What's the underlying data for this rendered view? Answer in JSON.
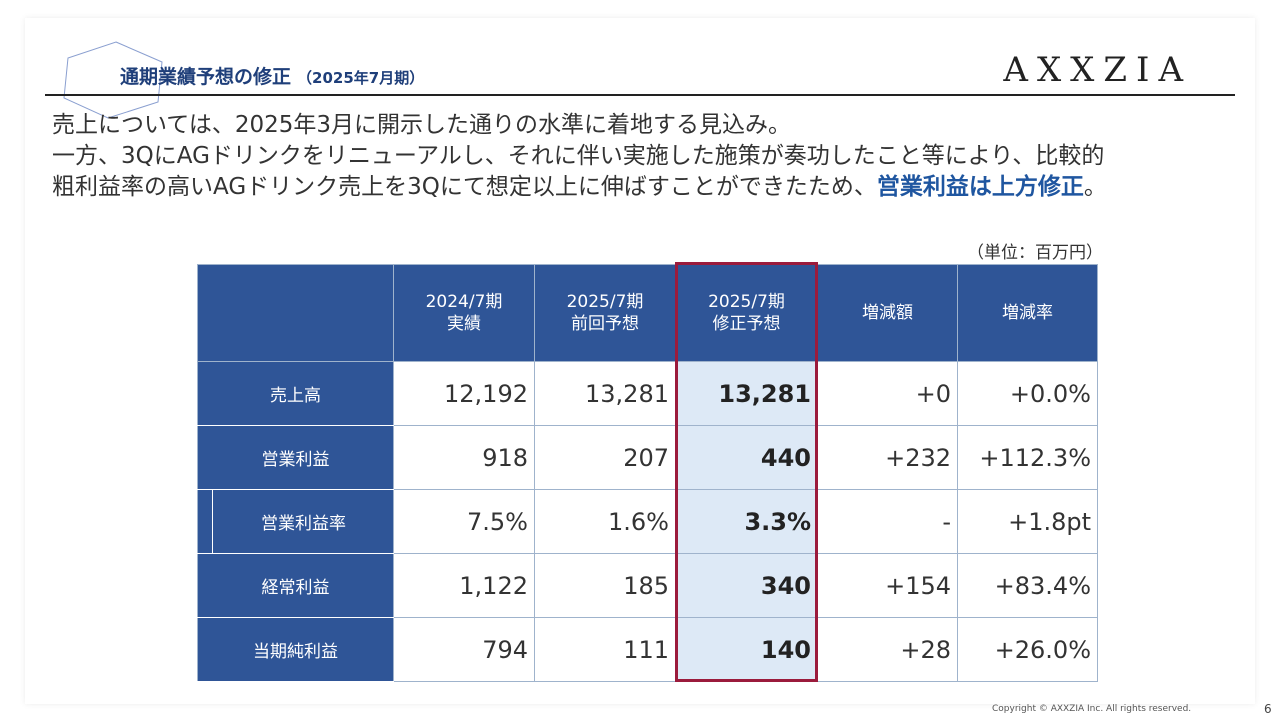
{
  "header": {
    "title": "通期業績予想の修正",
    "subtitle": "（2025年7月期）",
    "logo": "AXXZIA"
  },
  "intro": {
    "line1": "売上については、2025年3月に開示した通りの水準に着地する見込み。",
    "line2": "一方、3QにAGドリンクをリニューアルし、それに伴い実施した施策が奏功したこと等により、比較的",
    "line3_pre": "粗利益率の高いAGドリンク売上を3Qにて想定以上に伸ばすことができたため、",
    "line3_hl": "営業利益は上方修正",
    "line3_post": "。"
  },
  "unit_label": "（単位：百万円）",
  "table": {
    "columns": [
      {
        "line1": "",
        "line2": ""
      },
      {
        "line1": "2024/7期",
        "line2": "実績"
      },
      {
        "line1": "2025/7期",
        "line2": "前回予想"
      },
      {
        "line1": "2025/7期",
        "line2": "修正予想"
      },
      {
        "line1": "増減額",
        "line2": ""
      },
      {
        "line1": "増減率",
        "line2": ""
      }
    ],
    "rows": [
      {
        "label": "売上高",
        "actual": "12,192",
        "prev": "13,281",
        "revised": "13,281",
        "diff": "+0",
        "rate": "+0.0%"
      },
      {
        "label": "営業利益",
        "actual": "918",
        "prev": "207",
        "revised": "440",
        "diff": "+232",
        "rate": "+112.3%"
      },
      {
        "label": "営業利益率",
        "actual": "7.5%",
        "prev": "1.6%",
        "revised": "3.3%",
        "diff": "-",
        "rate": "+1.8pt"
      },
      {
        "label": "経常利益",
        "actual": "1,122",
        "prev": "185",
        "revised": "340",
        "diff": "+154",
        "rate": "+83.4%"
      },
      {
        "label": "当期純利益",
        "actual": "794",
        "prev": "111",
        "revised": "140",
        "diff": "+28",
        "rate": "+26.0%"
      }
    ]
  },
  "footer": {
    "copyright": "Copyright © AXXZIA Inc. All rights reserved.",
    "page_number": "6"
  },
  "colors": {
    "header_blue": "#2f5597",
    "title_blue": "#1f3f7a",
    "highlight_blue": "#1f56a0",
    "revised_bg": "#dde9f6",
    "revised_border": "#9b1b3c"
  }
}
